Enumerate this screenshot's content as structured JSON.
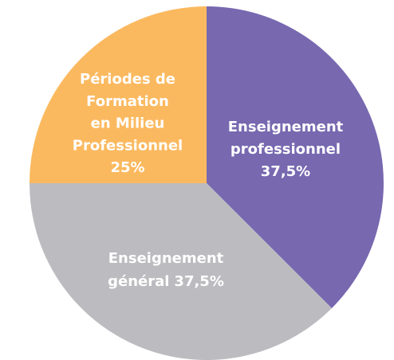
{
  "chart_data": {
    "type": "pie",
    "categories": [
      [
        "Enseignement",
        "professionnel"
      ],
      [
        "Enseignement",
        "général"
      ],
      [
        "Périodes de",
        "Formation",
        "en Milieu",
        "Professionnel"
      ]
    ],
    "values": [
      37.5,
      37.5,
      25
    ],
    "value_labels": [
      "37,5%",
      "37,5%",
      "25%"
    ],
    "colors": [
      "#7768b0",
      "#bcbcc0",
      "#fbb95f"
    ]
  }
}
